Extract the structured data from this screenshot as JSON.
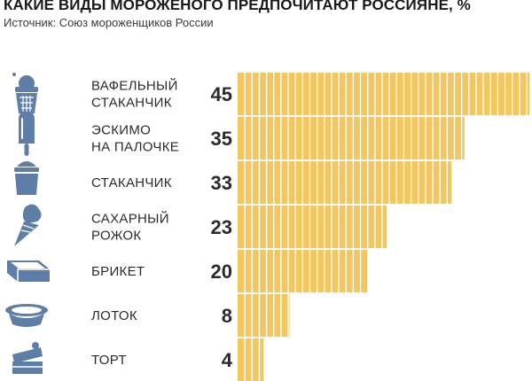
{
  "chart_data": {
    "type": "bar",
    "orientation": "horizontal",
    "title": "КАКИЕ ВИДЫ МОРОЖЕНОГО ПРЕДПОЧИТАЮТ РОССИЯНЕ, %",
    "subtitle": "Источник: Союз мороженщиков России",
    "categories": [
      [
        "ВАФЕЛЬНЫЙ",
        "СТАКАНЧИК"
      ],
      [
        "ЭСКИМО",
        "НА ПАЛОЧКЕ"
      ],
      [
        "СТАКАНЧИК"
      ],
      [
        "САХАРНЫЙ",
        "РОЖОК"
      ],
      [
        "БРИКЕТ"
      ],
      [
        "ЛОТОК"
      ],
      [
        "ТОРТ"
      ]
    ],
    "values": [
      45,
      35,
      33,
      23,
      20,
      8,
      4
    ],
    "icons": [
      "waffle-cup-icon",
      "eskimo-icon",
      "cup-icon",
      "cone-icon",
      "brick-icon",
      "tray-icon",
      "cake-icon"
    ],
    "xlim": [
      0,
      45
    ],
    "grid": false,
    "legend": "none",
    "colors": {
      "bar": "#f3c760",
      "segment_line": "#ffffff",
      "icon": "#5e7ea8",
      "text": "#2b2b2b"
    }
  }
}
